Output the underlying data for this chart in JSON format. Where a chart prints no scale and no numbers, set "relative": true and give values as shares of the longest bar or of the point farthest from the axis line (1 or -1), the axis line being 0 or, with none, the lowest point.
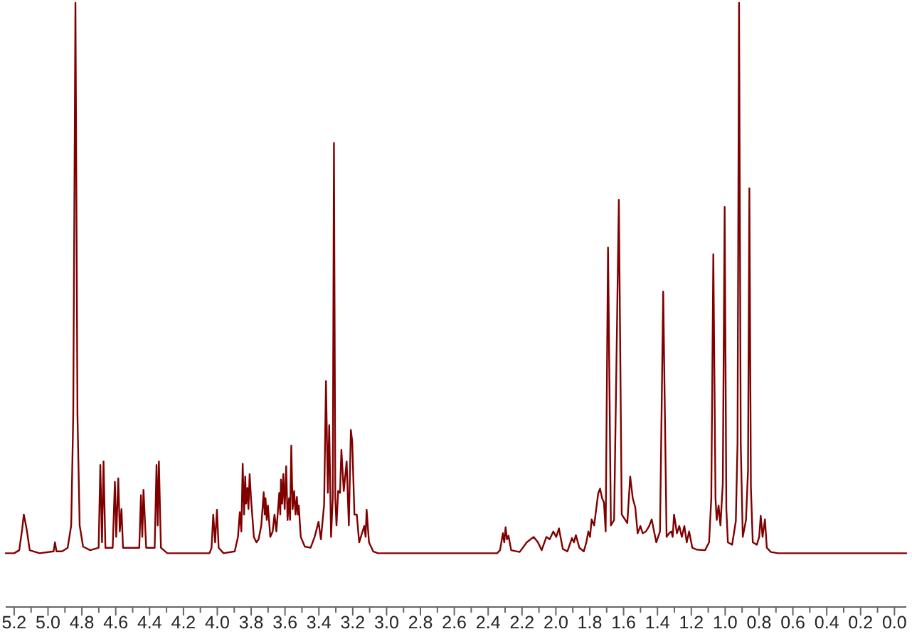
{
  "chart_data": {
    "type": "line",
    "relative": true,
    "color": "#800000",
    "xlim": [
      5.25,
      -0.07
    ],
    "xticks": [
      5.2,
      {
        "value": 5.1,
        "label": null
      },
      {
        "value": 5,
        "label": "5.0"
      },
      {
        "value": 4.9,
        "label": null
      },
      4.8,
      {
        "value": 4.7,
        "label": null
      },
      4.6,
      {
        "value": 4.5,
        "label": null
      },
      4.4,
      {
        "value": 4.3,
        "label": null
      },
      4.2,
      {
        "value": 4.1,
        "label": null
      },
      {
        "value": 4,
        "label": "4.0"
      },
      {
        "value": 3.9,
        "label": null
      },
      3.8,
      {
        "value": 3.7,
        "label": null
      },
      3.6,
      {
        "value": 3.5,
        "label": null
      },
      3.4,
      {
        "value": 3.3,
        "label": null
      },
      3.2,
      {
        "value": 3.1,
        "label": null
      },
      {
        "value": 3,
        "label": "3.0"
      },
      {
        "value": 2.9,
        "label": null
      },
      2.8,
      {
        "value": 2.7,
        "label": null
      },
      2.6,
      {
        "value": 2.5,
        "label": null
      },
      2.4,
      {
        "value": 2.3,
        "label": null
      },
      2.2,
      {
        "value": 2.1,
        "label": null
      },
      {
        "value": 2,
        "label": "2.0"
      },
      {
        "value": 1.9,
        "label": null
      },
      1.8,
      {
        "value": 1.7,
        "label": null
      },
      1.6,
      {
        "value": 1.5,
        "label": null
      },
      1.4,
      {
        "value": 1.3,
        "label": null
      },
      1.2,
      {
        "value": 1.1,
        "label": null
      },
      {
        "value": 1,
        "label": "1.0"
      },
      {
        "value": 0.9,
        "label": null
      },
      0.8,
      {
        "value": 0.7,
        "label": null
      },
      0.6,
      {
        "value": 0.5,
        "label": null
      },
      0.4,
      {
        "value": 0.3,
        "label": null
      },
      0.2,
      {
        "value": 0.1,
        "label": null
      },
      {
        "value": 0,
        "label": "0.0"
      }
    ],
    "x": [
      5.25,
      5.2,
      5.17,
      5.152,
      5.143,
      5.133,
      5.124,
      5.108,
      5.05,
      4.967,
      4.959,
      4.95,
      4.917,
      4.884,
      4.863,
      4.851,
      4.838,
      4.826,
      4.813,
      4.793,
      4.751,
      4.701,
      4.691,
      4.681,
      4.672,
      4.661,
      4.618,
      4.605,
      4.597,
      4.585,
      4.576,
      4.566,
      4.557,
      4.461,
      4.451,
      4.443,
      4.436,
      4.42,
      4.37,
      4.359,
      4.352,
      4.345,
      4.333,
      4.295,
      4.046,
      4.034,
      4.024,
      4.013,
      4.002,
      3.992,
      3.963,
      3.897,
      3.878,
      3.867,
      3.858,
      3.85,
      3.842,
      3.835,
      3.83,
      3.822,
      3.816,
      3.809,
      3.801,
      3.784,
      3.769,
      3.756,
      3.74,
      3.726,
      3.72,
      3.715,
      3.708,
      3.701,
      3.687,
      3.673,
      3.662,
      3.651,
      3.634,
      3.628,
      3.624,
      3.617,
      3.61,
      3.602,
      3.593,
      3.585,
      3.576,
      3.57,
      3.563,
      3.555,
      3.546,
      3.538,
      3.53,
      3.524,
      3.519,
      3.507,
      3.483,
      3.449,
      3.425,
      3.402,
      3.388,
      3.369,
      3.358,
      3.347,
      3.339,
      3.328,
      3.318,
      3.311,
      3.303,
      3.296,
      3.286,
      3.275,
      3.267,
      3.253,
      3.236,
      3.223,
      3.211,
      3.203,
      3.19,
      3.176,
      3.162,
      3.132,
      3.124,
      3.118,
      3.104,
      3.079,
      3.051,
      2.347,
      2.33,
      2.313,
      2.305,
      2.297,
      2.289,
      2.28,
      2.264,
      2.214,
      2.172,
      2.131,
      2.106,
      2.084,
      2.056,
      2.037,
      2.015,
      1.998,
      1.982,
      1.959,
      1.932,
      1.905,
      1.893,
      1.882,
      1.861,
      1.835,
      1.82,
      1.808,
      1.798,
      1.789,
      1.774,
      1.76,
      1.75,
      1.739,
      1.727,
      1.716,
      1.706,
      1.692,
      1.675,
      1.656,
      1.628,
      1.611,
      1.592,
      1.578,
      1.561,
      1.546,
      1.531,
      1.517,
      1.501,
      1.487,
      1.468,
      1.449,
      1.434,
      1.42,
      1.407,
      1.385,
      1.366,
      1.346,
      1.331,
      1.318,
      1.31,
      1.302,
      1.285,
      1.271,
      1.256,
      1.241,
      1.227,
      1.213,
      1.194,
      1.169,
      1.119,
      1.095,
      1.082,
      1.07,
      1.057,
      1.05,
      1.039,
      1.028,
      1.014,
      1.003,
      0.993,
      0.984,
      0.959,
      0.937,
      0.927,
      0.918,
      0.908,
      0.896,
      0.877,
      0.865,
      0.857,
      0.848,
      0.837,
      0.813,
      0.799,
      0.79,
      0.779,
      0.765,
      0.754,
      0.73,
      0.688,
      -0.07
    ],
    "values": [
      0.089,
      0.089,
      0.094,
      0.13,
      0.153,
      0.139,
      0.125,
      0.094,
      0.089,
      0.092,
      0.107,
      0.092,
      0.092,
      0.098,
      0.135,
      0.317,
      1,
      0.317,
      0.135,
      0.1,
      0.094,
      0.098,
      0.235,
      0.107,
      0.241,
      0.098,
      0.098,
      0.207,
      0.116,
      0.213,
      0.125,
      0.162,
      0.098,
      0.098,
      0.185,
      0.116,
      0.194,
      0.098,
      0.098,
      0.235,
      0.135,
      0.241,
      0.098,
      0.089,
      0.089,
      0.098,
      0.153,
      0.107,
      0.161,
      0.098,
      0.089,
      0.092,
      0.116,
      0.157,
      0.125,
      0.237,
      0.153,
      0.216,
      0.171,
      0.197,
      0.162,
      0.22,
      0.18,
      0.116,
      0.107,
      0.112,
      0.135,
      0.19,
      0.153,
      0.18,
      0.144,
      0.168,
      0.116,
      0.125,
      0.153,
      0.125,
      0.189,
      0.153,
      0.211,
      0.171,
      0.22,
      0.162,
      0.233,
      0.144,
      0.18,
      0.144,
      0.267,
      0.162,
      0.192,
      0.153,
      0.182,
      0.153,
      0.168,
      0.116,
      0.1,
      0.098,
      0.116,
      0.141,
      0.112,
      0.17,
      0.374,
      0.189,
      0.301,
      0.116,
      0.18,
      0.768,
      0.18,
      0.135,
      0.192,
      0.189,
      0.26,
      0.192,
      0.241,
      0.135,
      0.293,
      0.274,
      0.153,
      0.153,
      0.107,
      0.134,
      0.116,
      0.161,
      0.107,
      0.092,
      0.089,
      0.089,
      0.094,
      0.122,
      0.107,
      0.132,
      0.112,
      0.118,
      0.094,
      0.091,
      0.107,
      0.116,
      0.107,
      0.094,
      0.116,
      0.112,
      0.125,
      0.116,
      0.13,
      0.096,
      0.092,
      0.114,
      0.107,
      0.119,
      0.098,
      0.092,
      0.107,
      0.125,
      0.116,
      0.145,
      0.135,
      0.166,
      0.188,
      0.196,
      0.18,
      0.173,
      0.125,
      0.595,
      0.135,
      0.144,
      0.674,
      0.153,
      0.145,
      0.139,
      0.216,
      0.18,
      0.165,
      0.122,
      0.134,
      0.122,
      0.125,
      0.134,
      0.145,
      0.125,
      0.107,
      0.125,
      0.522,
      0.116,
      0.122,
      0.125,
      0.116,
      0.153,
      0.122,
      0.134,
      0.116,
      0.134,
      0.107,
      0.125,
      0.098,
      0.095,
      0.094,
      0.107,
      0.18,
      0.584,
      0.18,
      0.144,
      0.168,
      0.135,
      0.204,
      0.662,
      0.162,
      0.107,
      0.103,
      0.142,
      0.271,
      1,
      0.271,
      0.116,
      0.144,
      0.226,
      0.693,
      0.198,
      0.107,
      0.103,
      0.116,
      0.151,
      0.116,
      0.145,
      0.098,
      0.091,
      0.089,
      0.089
    ]
  }
}
